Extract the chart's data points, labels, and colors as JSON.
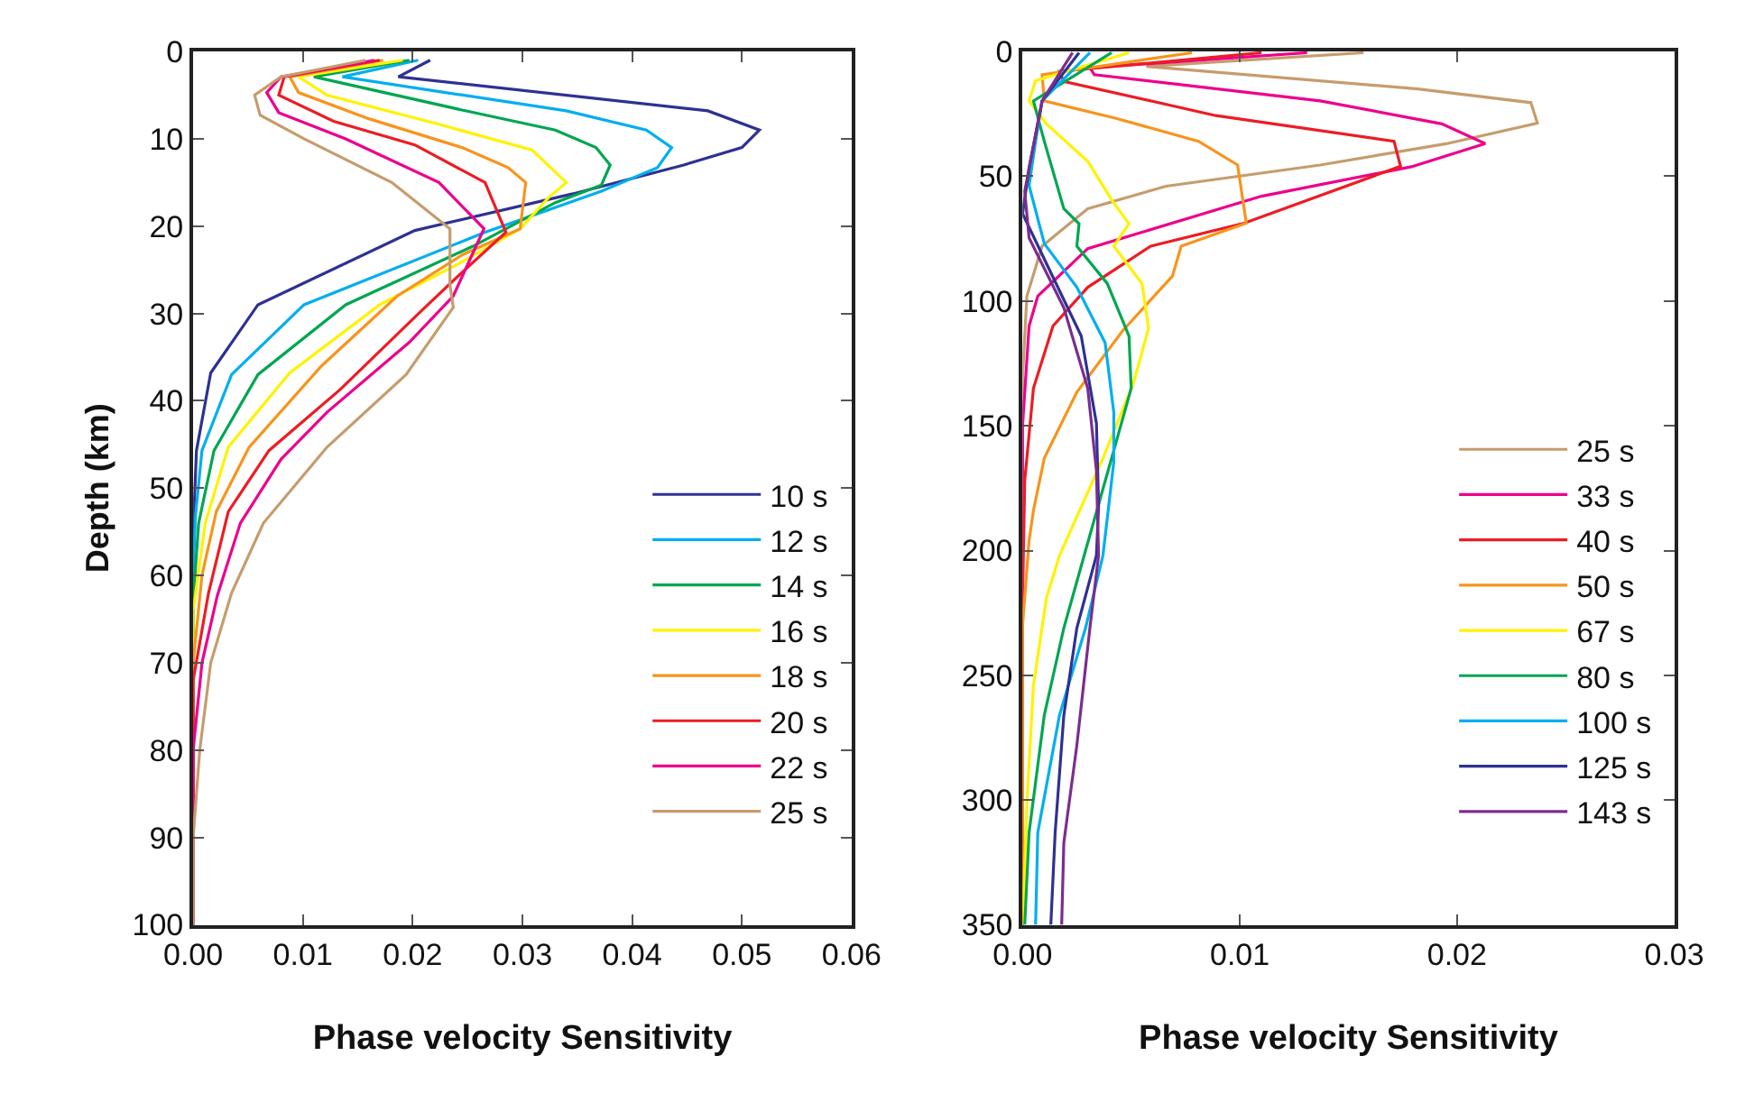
{
  "chart_data": [
    {
      "type": "line",
      "xlabel": "Phase velocity Sensitivity",
      "ylabel": "Depth (km)",
      "xlim": [
        0,
        0.06
      ],
      "xticks": [
        {
          "value": 0,
          "label": "0.00"
        },
        {
          "value": 0.01,
          "label": "0.01"
        },
        {
          "value": 0.02,
          "label": "0.02"
        },
        {
          "value": 0.03,
          "label": "0.03"
        },
        {
          "value": 0.04,
          "label": "0.04"
        },
        {
          "value": 0.05,
          "label": "0.05"
        },
        {
          "value": 0.06,
          "label": "0.06"
        }
      ],
      "ylim": [
        100,
        0
      ],
      "yticks": [
        0,
        10,
        20,
        30,
        40,
        50,
        60,
        70,
        80,
        90,
        100
      ],
      "legend": "bottom right",
      "line_style": "solid",
      "marker": "none",
      "series": [
        {
          "name": "10 s",
          "color": "#2e3192",
          "x": [
            0.0216,
            0.0187,
            0.0469,
            0.0516,
            0.05,
            0.0447,
            0.0346,
            0.0202,
            0.0059,
            0.0016,
            0.0003,
            0,
            0
          ],
          "values": [
            1,
            2.9,
            6.8,
            9,
            11,
            13,
            16.3,
            20.5,
            29,
            36.8,
            45.7,
            55,
            100
          ]
        },
        {
          "name": "12 s",
          "color": "#00aeef",
          "x": [
            0.0205,
            0.0136,
            0.034,
            0.0413,
            0.0436,
            0.0423,
            0.0372,
            0.0266,
            0.0101,
            0.0035,
            0.0008,
            0.0002,
            0,
            0
          ],
          "values": [
            1,
            2.9,
            6.8,
            9,
            11,
            13.3,
            16,
            20.7,
            29,
            37,
            45.7,
            53.3,
            60,
            100
          ]
        },
        {
          "name": "14 s",
          "color": "#00a651",
          "x": [
            0.0197,
            0.011,
            0.0245,
            0.033,
            0.0367,
            0.038,
            0.0372,
            0.033,
            0.0255,
            0.0139,
            0.0059,
            0.0019,
            0.0005,
            0,
            0
          ],
          "values": [
            1,
            2.9,
            6.7,
            9,
            11,
            13,
            15.3,
            17.3,
            22.3,
            29,
            37,
            45.7,
            54,
            63,
            100
          ]
        },
        {
          "name": "16 s",
          "color": "#fff200",
          "x": [
            0.0191,
            0.0096,
            0.0122,
            0.0223,
            0.0309,
            0.034,
            0.0324,
            0.0298,
            0.0242,
            0.017,
            0.0088,
            0.0032,
            0.0011,
            0,
            0
          ],
          "values": [
            1,
            2.9,
            5,
            8.3,
            11.3,
            15,
            16.7,
            20.3,
            24.3,
            29,
            36.8,
            45.3,
            54,
            64,
            100
          ]
        },
        {
          "name": "18 s",
          "color": "#f7941d",
          "x": [
            0.0173,
            0.0088,
            0.0096,
            0.016,
            0.0245,
            0.0287,
            0.0303,
            0.0298,
            0.0245,
            0.0186,
            0.0117,
            0.0051,
            0.0021,
            0.0008,
            0,
            0
          ],
          "values": [
            1,
            2.9,
            4.7,
            7.7,
            11,
            13.3,
            15,
            20.3,
            23.3,
            28,
            36,
            45.3,
            52.7,
            60,
            70,
            100
          ]
        },
        {
          "name": "20 s",
          "color": "#ed1c24",
          "x": [
            0.017,
            0.0083,
            0.0078,
            0.0128,
            0.0202,
            0.0266,
            0.0285,
            0.0245,
            0.0208,
            0.0134,
            0.0069,
            0.0032,
            0.0014,
            0,
            0
          ],
          "values": [
            1,
            2.9,
            5,
            8,
            10.7,
            15,
            20.7,
            25.3,
            29.7,
            38.7,
            45.7,
            52.7,
            62,
            72,
            100
          ]
        },
        {
          "name": "22 s",
          "color": "#ec008c",
          "x": [
            0.0165,
            0.008,
            0.0067,
            0.0078,
            0.0139,
            0.0224,
            0.0265,
            0.0237,
            0.0197,
            0.0122,
            0.008,
            0.0043,
            0.0022,
            0.0008,
            0,
            0
          ],
          "values": [
            1,
            2.9,
            4.7,
            7,
            10,
            15,
            20.3,
            28,
            33.3,
            41.3,
            46.7,
            54,
            62.3,
            70,
            80,
            100
          ]
        },
        {
          "name": "25 s",
          "color": "#c69c6d",
          "x": [
            0.0157,
            0.008,
            0.0056,
            0.0061,
            0.0101,
            0.0181,
            0.0234,
            0.0234,
            0.0237,
            0.0194,
            0.0122,
            0.0064,
            0.0035,
            0.0016,
            0.0006,
            0,
            0
          ],
          "values": [
            1,
            2.9,
            5,
            7.3,
            10,
            15,
            20.3,
            26.7,
            29.3,
            37,
            45.3,
            54,
            62,
            70,
            80,
            90,
            100
          ]
        }
      ]
    },
    {
      "type": "line",
      "xlabel": "Phase velocity Sensitivity",
      "xlim": [
        0,
        0.03
      ],
      "xticks": [
        {
          "value": 0,
          "label": "0.00"
        },
        {
          "value": 0.01,
          "label": "0.01"
        },
        {
          "value": 0.02,
          "label": "0.02"
        },
        {
          "value": 0.03,
          "label": "0.03"
        }
      ],
      "ylim": [
        350,
        0
      ],
      "yticks": [
        0,
        50,
        100,
        150,
        200,
        250,
        300,
        350
      ],
      "legend": "bottom right",
      "line_style": "solid",
      "marker": "none",
      "series": [
        {
          "name": "25 s",
          "color": "#c69c6d",
          "x": [
            0.0157,
            0.0057,
            0.0182,
            0.0234,
            0.0237,
            0.0195,
            0.0137,
            0.0066,
            0.003,
            0.0009,
            0.0002,
            0,
            0
          ],
          "values": [
            0.5,
            6,
            15,
            20.5,
            28.7,
            37,
            45.5,
            54,
            63,
            78,
            98,
            130,
            350
          ]
        },
        {
          "name": "33 s",
          "color": "#ec008c",
          "x": [
            0.0131,
            0.0031,
            0.0033,
            0.0137,
            0.0193,
            0.0213,
            0.0179,
            0.011,
            0.003,
            0.0007,
            0.0003,
            0,
            0
          ],
          "values": [
            0.5,
            6.5,
            9.3,
            19.8,
            29,
            36.9,
            46.2,
            58,
            79,
            98,
            110,
            150,
            350
          ]
        },
        {
          "name": "40 s",
          "color": "#ed1c24",
          "x": [
            0.011,
            0.0017,
            0.0019,
            0.0089,
            0.0171,
            0.0174,
            0.0102,
            0.0059,
            0.003,
            0.0014,
            0.0005,
            0.0001,
            0,
            0
          ],
          "values": [
            0.5,
            8,
            12,
            25.7,
            36,
            46,
            68.8,
            78,
            94.5,
            110,
            135,
            172,
            220,
            350
          ]
        },
        {
          "name": "50 s",
          "color": "#f7941d",
          "x": [
            0.0078,
            0.0009,
            0.001,
            0.0043,
            0.0081,
            0.0099,
            0.0103,
            0.0073,
            0.0069,
            0.0046,
            0.0025,
            0.001,
            0.0005,
            0.0003,
            0,
            0
          ],
          "values": [
            0.5,
            9.3,
            19.8,
            26.8,
            36,
            45.5,
            68.8,
            78,
            90,
            112,
            136.5,
            163,
            184,
            196,
            230,
            350
          ]
        },
        {
          "name": "67 s",
          "color": "#fff200",
          "x": [
            0.0049,
            0.0006,
            0.0003,
            0.0011,
            0.003,
            0.0041,
            0.0049,
            0.0042,
            0.0055,
            0.0058,
            0.0051,
            0.0037,
            0.0017,
            0.0011,
            0.0005,
            0.0002,
            0
          ],
          "values": [
            0.5,
            11.7,
            19.8,
            29,
            44,
            59.5,
            69,
            78,
            93,
            111,
            133,
            163,
            202,
            219,
            254,
            301,
            350
          ]
        },
        {
          "name": "80 s",
          "color": "#00a651",
          "x": [
            0.0041,
            0.0005,
            0.001,
            0.0019,
            0.0026,
            0.0025,
            0.0039,
            0.0049,
            0.005,
            0.0041,
            0.0029,
            0.0019,
            0.001,
            0.0003,
            0.0001
          ],
          "values": [
            0.5,
            19.8,
            36,
            63,
            69,
            78,
            93,
            114,
            135,
            163,
            200,
            231,
            266,
            313,
            350
          ]
        },
        {
          "name": "100 s",
          "color": "#00aeef",
          "x": [
            0.0031,
            0.0009,
            0.0006,
            0.0003,
            0.001,
            0.0025,
            0.0038,
            0.0042,
            0.0042,
            0.0037,
            0.0029,
            0.0017,
            0.0007,
            0.0006
          ],
          "values": [
            0.5,
            19.8,
            36,
            53.7,
            77,
            94.5,
            116.7,
            144.7,
            164.5,
            202,
            231,
            266,
            313,
            350
          ]
        },
        {
          "name": "125 s",
          "color": "#2e3192",
          "x": [
            0.0026,
            0.0009,
            0.0003,
            0,
            0.0011,
            0.0027,
            0.0034,
            0.0035,
            0.0034,
            0.0025,
            0.0019,
            0.0015,
            0.0013
          ],
          "values": [
            0.5,
            19.8,
            46.7,
            65,
            85,
            114,
            149,
            182,
            202,
            231,
            266,
            313,
            350
          ]
        },
        {
          "name": "143 s",
          "color": "#7b2d8e",
          "x": [
            0.0023,
            0.0009,
            0.0001,
            0.0003,
            0.0019,
            0.003,
            0.0034,
            0.0035,
            0.0031,
            0.0025,
            0.0019,
            0.0018
          ],
          "values": [
            0.5,
            19.8,
            56,
            74.7,
            102.7,
            135,
            168,
            202,
            231,
            278,
            317,
            350
          ]
        }
      ]
    }
  ]
}
